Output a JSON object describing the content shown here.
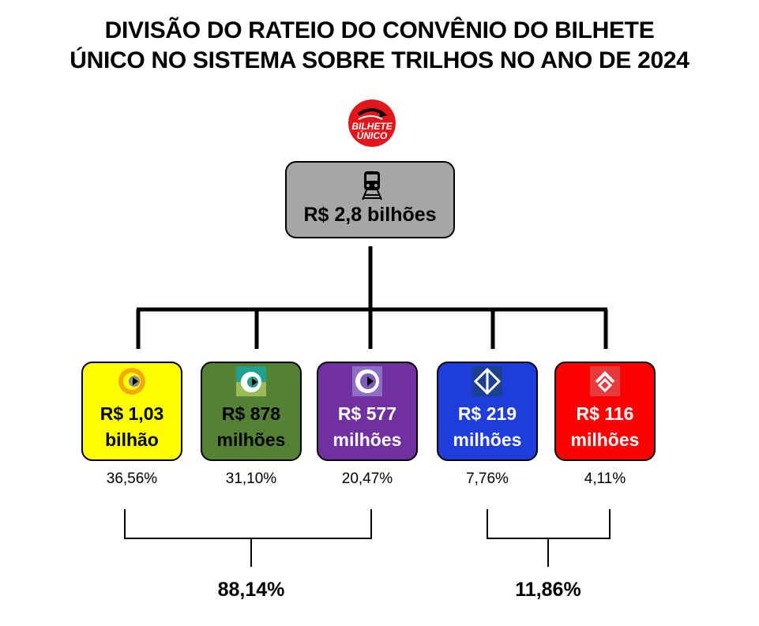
{
  "title": {
    "line1": "DIVISÃO DO RATEIO DO CONVÊNIO DO BILHETE",
    "line2": "ÚNICO NO SISTEMA SOBRE TRILHOS NO ANO DE 2024"
  },
  "logo": {
    "icon": "bilhete-unico-logo",
    "text_line1": "BILHETE",
    "text_line2": "ÚNICO",
    "color": "#e3161b"
  },
  "root": {
    "icon": "train-icon",
    "amount": "R$ 2,8 bilhões",
    "color": "#a6a6a6"
  },
  "operators": [
    {
      "amount_line1": "R$ 1,03",
      "amount_line2": "bilhão",
      "percent": "36,56%",
      "color": "#ffff00",
      "text_color": "#000000",
      "icon": "yellow-line-logo"
    },
    {
      "amount_line1": "R$ 878",
      "amount_line2": "milhões",
      "percent": "31,10%",
      "color": "#548235",
      "text_color": "#000000",
      "icon": "green-white-logo"
    },
    {
      "amount_line1": "R$ 577",
      "amount_line2": "milhões",
      "percent": "20,47%",
      "color": "#7030a0",
      "text_color": "#ffffff",
      "icon": "purple-line-logo"
    },
    {
      "amount_line1": "R$ 219",
      "amount_line2": "milhões",
      "percent": "7,76%",
      "color": "#1f3ddb",
      "text_color": "#ffffff",
      "icon": "metro-logo"
    },
    {
      "amount_line1": "R$ 116",
      "amount_line2": "milhões",
      "percent": "4,11%",
      "color": "#ff0000",
      "text_color": "#ffffff",
      "icon": "cptm-logo"
    }
  ],
  "totals": [
    {
      "value": "88,14%"
    },
    {
      "value": "11,86%"
    }
  ]
}
